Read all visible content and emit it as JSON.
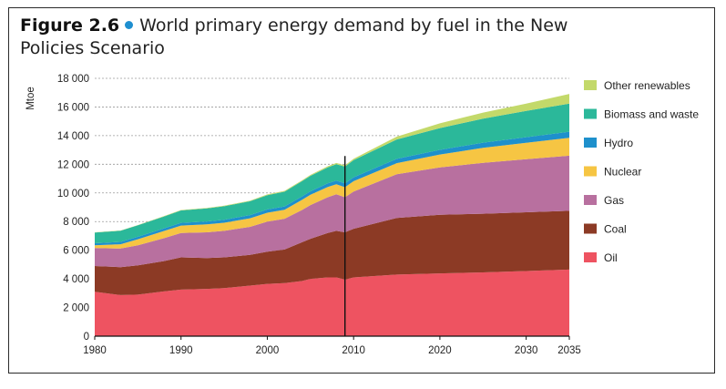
{
  "figure": {
    "label": "Figure 2.6",
    "title": "World primary energy demand by fuel in the New Policies Scenario"
  },
  "chart_data": {
    "type": "area",
    "stacked": true,
    "ylabel": "Mtoe",
    "xlabel": "",
    "xlim": [
      1980,
      2035
    ],
    "ylim": [
      0,
      18000
    ],
    "x_ticks": [
      1980,
      1990,
      2000,
      2010,
      2020,
      2030,
      2035
    ],
    "y_ticks": [
      0,
      2000,
      4000,
      6000,
      8000,
      10000,
      12000,
      14000,
      16000,
      18000
    ],
    "y_tick_labels": [
      "0",
      "2 000",
      "4 000",
      "6 000",
      "8 000",
      "10 000",
      "12 000",
      "14 000",
      "16 000",
      "18 000"
    ],
    "grid": "horizontal dotted",
    "legend_position": "right",
    "divider_year": 2009,
    "x": [
      1980,
      1983,
      1985,
      1988,
      1990,
      1993,
      1995,
      1998,
      2000,
      2002,
      2004,
      2005,
      2007,
      2008,
      2009,
      2010,
      2015,
      2020,
      2025,
      2030,
      2035
    ],
    "series": [
      {
        "name": "Oil",
        "color": "#ee5361",
        "values": [
          3100,
          2870,
          2900,
          3120,
          3250,
          3300,
          3350,
          3530,
          3650,
          3700,
          3850,
          4000,
          4100,
          4100,
          3950,
          4100,
          4300,
          4380,
          4450,
          4550,
          4650
        ]
      },
      {
        "name": "Coal",
        "color": "#8c3a25",
        "values": [
          1800,
          1950,
          2050,
          2120,
          2250,
          2150,
          2150,
          2150,
          2250,
          2350,
          2700,
          2800,
          3100,
          3250,
          3300,
          3400,
          3950,
          4100,
          4100,
          4100,
          4100
        ]
      },
      {
        "name": "Gas",
        "color": "#b8709f",
        "values": [
          1250,
          1300,
          1400,
          1600,
          1700,
          1800,
          1850,
          1950,
          2100,
          2150,
          2250,
          2350,
          2500,
          2550,
          2450,
          2600,
          3050,
          3300,
          3550,
          3700,
          3850
        ]
      },
      {
        "name": "Nuclear",
        "color": "#f6c543",
        "values": [
          190,
          300,
          420,
          500,
          520,
          560,
          570,
          600,
          620,
          630,
          710,
          720,
          710,
          700,
          700,
          720,
          780,
          900,
          1050,
          1150,
          1250
        ]
      },
      {
        "name": "Hydro",
        "color": "#1e90cc",
        "values": [
          150,
          160,
          170,
          180,
          190,
          200,
          210,
          220,
          225,
          230,
          240,
          245,
          255,
          260,
          265,
          270,
          300,
          330,
          360,
          390,
          420
        ]
      },
      {
        "name": "Biomass and waste",
        "color": "#2bb89a",
        "values": [
          750,
          780,
          800,
          830,
          870,
          910,
          940,
          970,
          1000,
          1030,
          1060,
          1080,
          1120,
          1150,
          1170,
          1200,
          1350,
          1520,
          1680,
          1830,
          1960
        ]
      },
      {
        "name": "Other renewables",
        "color": "#c3d96a",
        "values": [
          10,
          15,
          20,
          25,
          30,
          35,
          40,
          45,
          50,
          55,
          60,
          65,
          75,
          80,
          90,
          100,
          200,
          330,
          420,
          520,
          680
        ]
      }
    ]
  }
}
